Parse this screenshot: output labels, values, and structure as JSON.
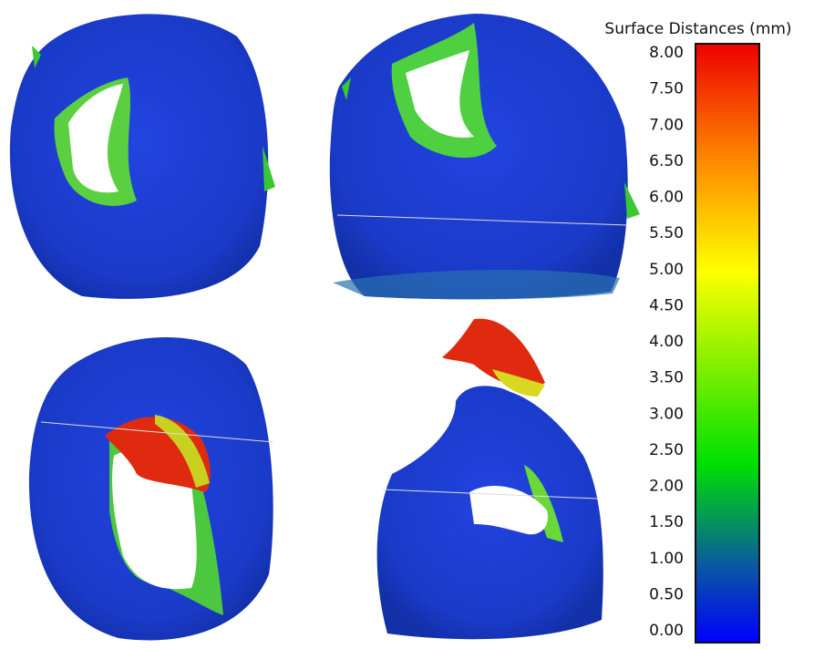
{
  "colorbar": {
    "title": "Surface Distances (mm)",
    "lim": [
      0,
      8
    ],
    "ticks": [
      {
        "value": 0,
        "label": "0.00"
      },
      {
        "value": 0.5,
        "label": "0.50"
      },
      {
        "value": 1,
        "label": "1.00"
      },
      {
        "value": 1.5,
        "label": "1.50"
      },
      {
        "value": 2,
        "label": "2.00"
      },
      {
        "value": 2.5,
        "label": "2.50"
      },
      {
        "value": 3,
        "label": "3.00"
      },
      {
        "value": 3.5,
        "label": "3.50"
      },
      {
        "value": 4,
        "label": "4.00"
      },
      {
        "value": 4.5,
        "label": "4.50"
      },
      {
        "value": 5,
        "label": "5.00"
      },
      {
        "value": 5.5,
        "label": "5.50"
      },
      {
        "value": 6,
        "label": "6.00"
      },
      {
        "value": 6.5,
        "label": "6.50"
      },
      {
        "value": 7,
        "label": "7.00"
      },
      {
        "value": 7.5,
        "label": "7.50"
      },
      {
        "value": 8,
        "label": "8.00"
      }
    ]
  }
}
